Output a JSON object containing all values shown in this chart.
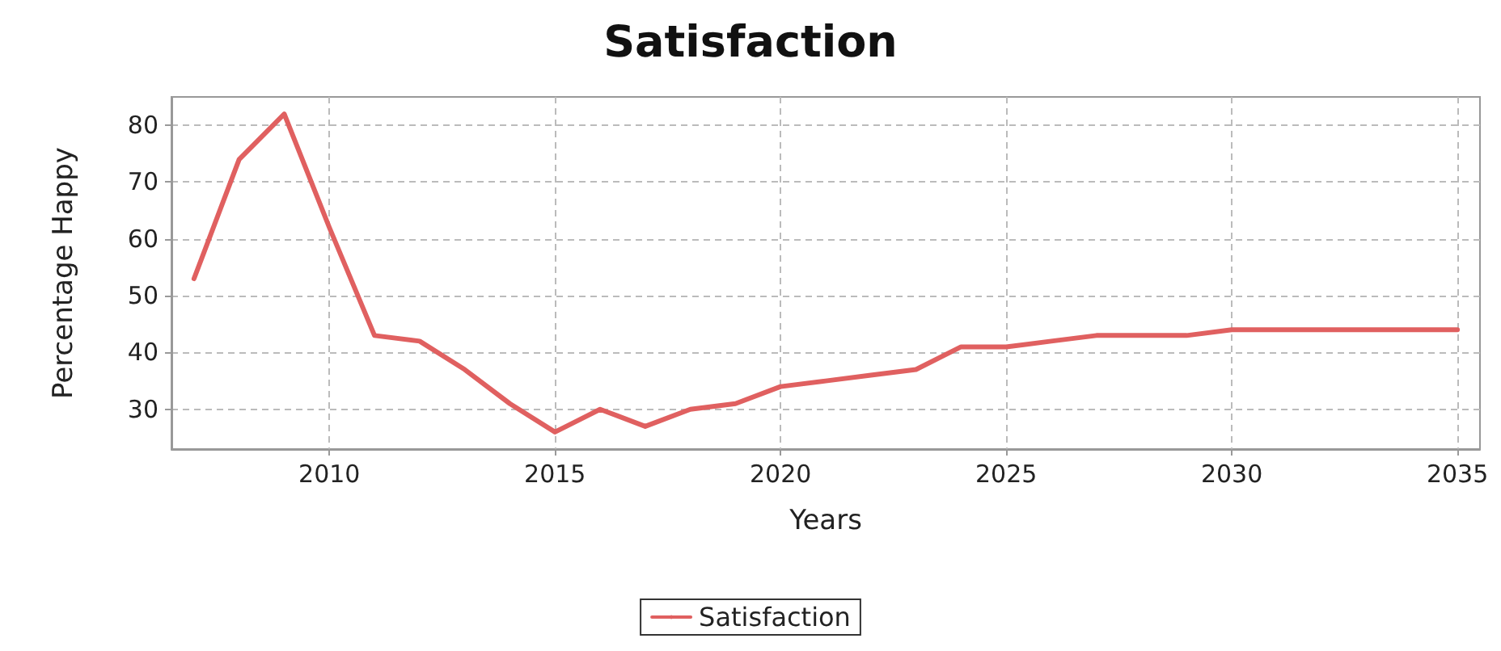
{
  "chart_data": {
    "type": "line",
    "title": "Satisfaction",
    "xlabel": "Years",
    "ylabel": "Percentage Happy",
    "x": [
      2007,
      2008,
      2009,
      2010,
      2011,
      2012,
      2013,
      2014,
      2015,
      2016,
      2017,
      2018,
      2019,
      2020,
      2021,
      2022,
      2023,
      2024,
      2025,
      2026,
      2027,
      2028,
      2029,
      2030,
      2031,
      2032,
      2033,
      2034,
      2035
    ],
    "series": [
      {
        "name": "Satisfaction",
        "color": "#e06060",
        "values": [
          53,
          74,
          82,
          62,
          43,
          42,
          37,
          31,
          26,
          30,
          27,
          30,
          31,
          34,
          35,
          36,
          37,
          41,
          41,
          42,
          43,
          43,
          43,
          44,
          44,
          44,
          44,
          44,
          44
        ]
      }
    ],
    "xlim": [
      2006.5,
      2035.5
    ],
    "xticks": [
      2010,
      2015,
      2020,
      2025,
      2030,
      2035
    ],
    "ylim": [
      23,
      85
    ],
    "yticks": [
      30,
      40,
      50,
      60,
      70,
      80
    ],
    "grid": true,
    "legend": "bottom",
    "marker": "none",
    "line_style": "solid"
  }
}
